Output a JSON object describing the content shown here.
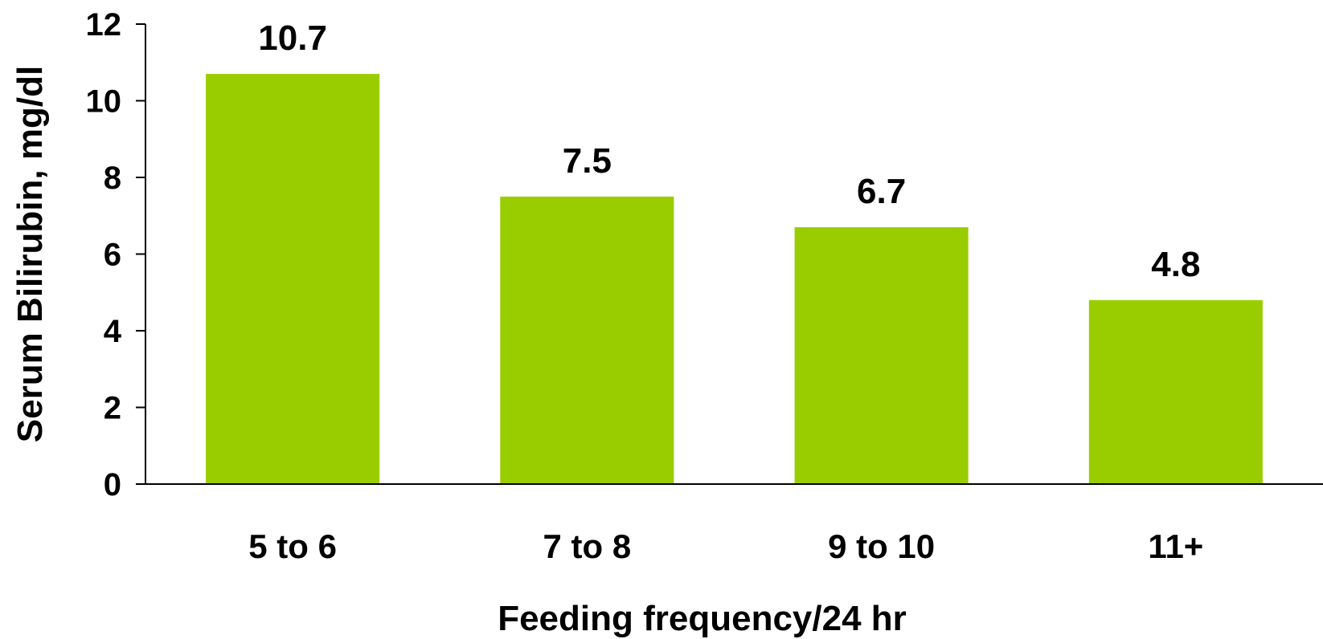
{
  "chart_data": {
    "type": "bar",
    "categories": [
      "5 to 6",
      "7 to 8",
      "9 to 10",
      "11+"
    ],
    "values": [
      10.7,
      7.5,
      6.7,
      4.8
    ],
    "data_labels": [
      "10.7",
      "7.5",
      "6.7",
      "4.8"
    ],
    "xlabel": "Feeding frequency/24 hr",
    "ylabel": "Serum Bilirubin, mg/dl",
    "ylim": [
      0,
      12
    ],
    "yticks": [
      0,
      2,
      4,
      6,
      8,
      10,
      12
    ],
    "grid": false,
    "legend": "none",
    "colors": {
      "bar": "#9ACD00",
      "axis": "#000000",
      "text": "#000000"
    }
  }
}
